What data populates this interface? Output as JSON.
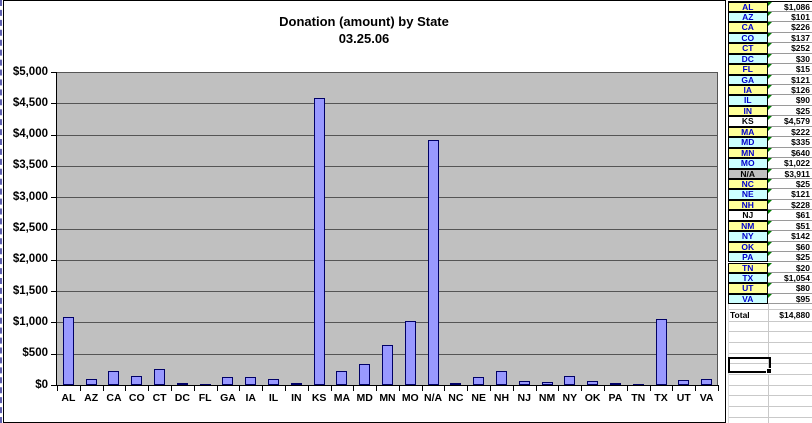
{
  "chart_data": {
    "type": "bar",
    "title": "Donation (amount) by State",
    "subtitle": "03.25.06",
    "categories": [
      "AL",
      "AZ",
      "CA",
      "CO",
      "CT",
      "DC",
      "FL",
      "GA",
      "IA",
      "IL",
      "IN",
      "KS",
      "MA",
      "MD",
      "MN",
      "MO",
      "N/A",
      "NC",
      "NE",
      "NH",
      "NJ",
      "NM",
      "NY",
      "OK",
      "PA",
      "TN",
      "TX",
      "UT",
      "VA"
    ],
    "values": [
      1086,
      101,
      226,
      137,
      252,
      30,
      15,
      121,
      126,
      90,
      25,
      4579,
      222,
      335,
      640,
      1022,
      3911,
      25,
      121,
      228,
      61,
      51,
      142,
      60,
      25,
      20,
      1054,
      80,
      95
    ],
    "xlabel": "",
    "ylabel": "",
    "ylim": [
      0,
      5000
    ],
    "ytick_step": 500,
    "ytick_labels": [
      "$5,000",
      "$4,500",
      "$4,000",
      "$3,500",
      "$3,000",
      "$2,500",
      "$2,000",
      "$1,500",
      "$1,000",
      "$500",
      "$0"
    ],
    "grid": true,
    "legend": false,
    "bar_color": "#9999FF",
    "plot_bg": "#C0C0C0"
  },
  "table": {
    "rows": [
      {
        "state": "AL",
        "value": "$1,086",
        "bg": "yellow"
      },
      {
        "state": "AZ",
        "value": "$101",
        "bg": "cyan"
      },
      {
        "state": "CA",
        "value": "$226",
        "bg": "yellow"
      },
      {
        "state": "CO",
        "value": "$137",
        "bg": "cyan"
      },
      {
        "state": "CT",
        "value": "$252",
        "bg": "yellow"
      },
      {
        "state": "DC",
        "value": "$30",
        "bg": "cyan"
      },
      {
        "state": "FL",
        "value": "$15",
        "bg": "yellow"
      },
      {
        "state": "GA",
        "value": "$121",
        "bg": "cyan"
      },
      {
        "state": "IA",
        "value": "$126",
        "bg": "yellow"
      },
      {
        "state": "IL",
        "value": "$90",
        "bg": "cyan"
      },
      {
        "state": "IN",
        "value": "$25",
        "bg": "yellow"
      },
      {
        "state": "KS",
        "value": "$4,579",
        "bg": "white"
      },
      {
        "state": "MA",
        "value": "$222",
        "bg": "yellow"
      },
      {
        "state": "MD",
        "value": "$335",
        "bg": "cyan"
      },
      {
        "state": "MN",
        "value": "$640",
        "bg": "yellow"
      },
      {
        "state": "MO",
        "value": "$1,022",
        "bg": "cyan"
      },
      {
        "state": "N/A",
        "value": "$3,911",
        "bg": "gray"
      },
      {
        "state": "NC",
        "value": "$25",
        "bg": "yellow"
      },
      {
        "state": "NE",
        "value": "$121",
        "bg": "cyan"
      },
      {
        "state": "NH",
        "value": "$228",
        "bg": "yellow"
      },
      {
        "state": "NJ",
        "value": "$61",
        "bg": "white"
      },
      {
        "state": "NM",
        "value": "$51",
        "bg": "yellow"
      },
      {
        "state": "NY",
        "value": "$142",
        "bg": "cyan"
      },
      {
        "state": "OK",
        "value": "$60",
        "bg": "yellow"
      },
      {
        "state": "PA",
        "value": "$25",
        "bg": "cyan"
      },
      {
        "state": "TN",
        "value": "$20",
        "bg": "yellow"
      },
      {
        "state": "TX",
        "value": "$1,054",
        "bg": "cyan"
      },
      {
        "state": "UT",
        "value": "$80",
        "bg": "yellow"
      },
      {
        "state": "VA",
        "value": "$95",
        "bg": "cyan"
      }
    ],
    "total_label": "Total",
    "total_value": "$14,880"
  },
  "colors": {
    "yellow": "#FFFF99",
    "cyan": "#CCFFFF",
    "gray": "#C0C0C0",
    "white": "#FFFFFF",
    "state_text_blue": "#0000CC",
    "state_text_black": "#000000",
    "bar_fill": "#9999FF",
    "bar_border": "#000066",
    "plot_bg": "#C0C0C0"
  }
}
